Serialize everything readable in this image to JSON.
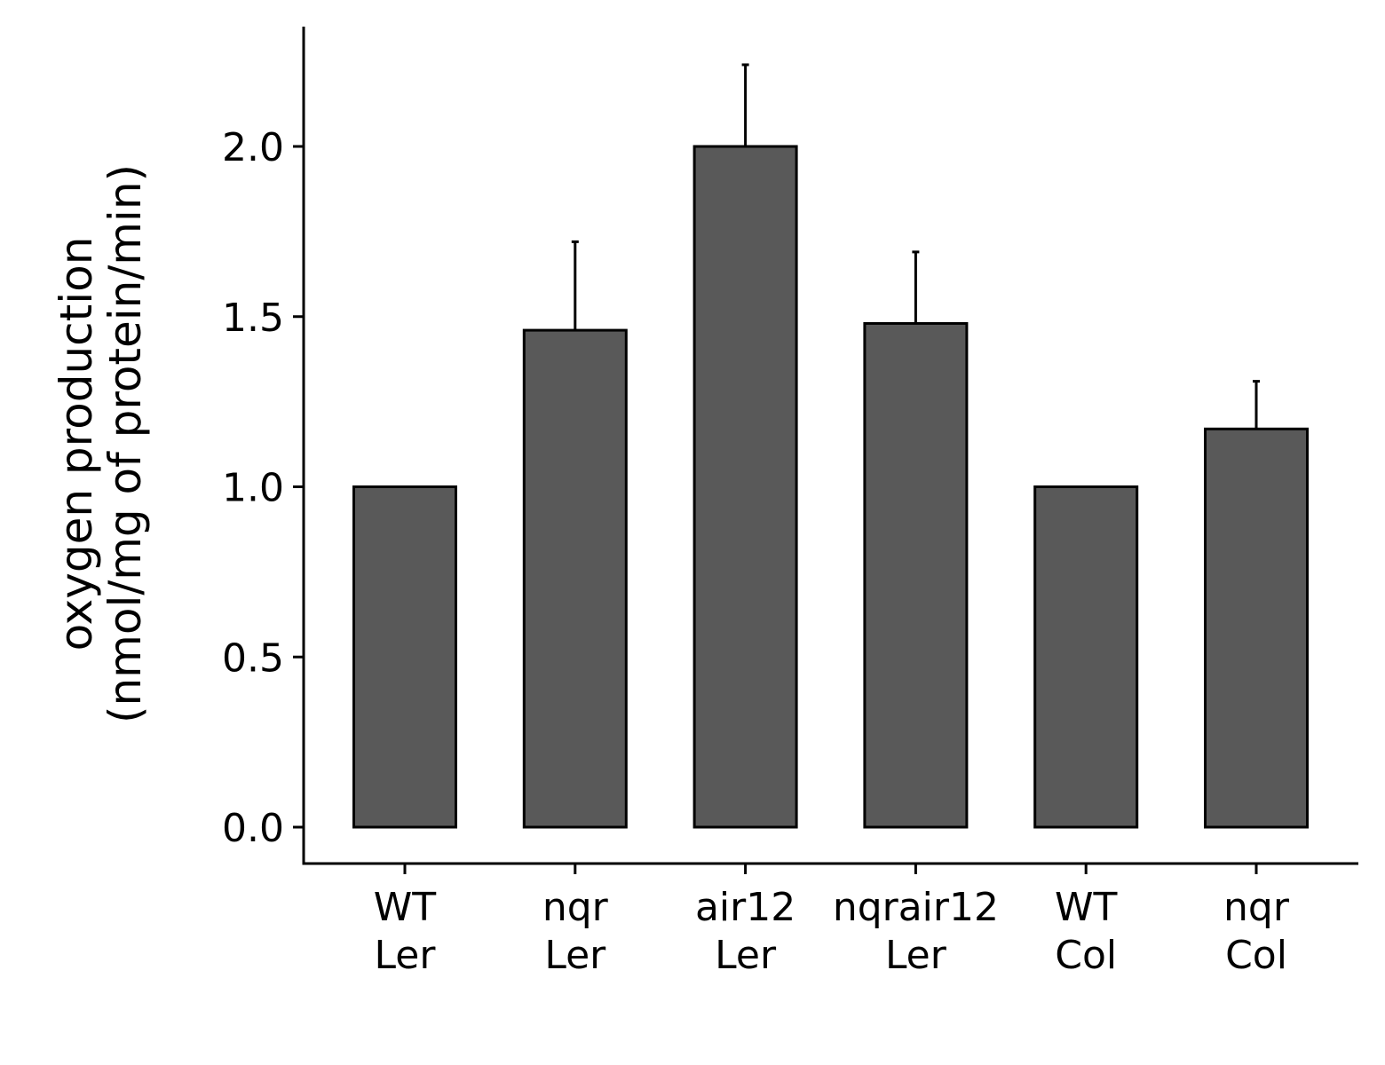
{
  "chart_data": {
    "type": "bar",
    "title": "",
    "xlabel": "",
    "ylabel_lines": [
      "oxygen production",
      "(nmol/mg of protein/min)"
    ],
    "categories": [
      [
        "WT",
        "Ler"
      ],
      [
        "nqr",
        "Ler"
      ],
      [
        "air12",
        "Ler"
      ],
      [
        "nqrair12",
        "Ler"
      ],
      [
        "WT",
        "Col"
      ],
      [
        "nqr",
        "Col"
      ]
    ],
    "values": [
      1.0,
      1.46,
      2.0,
      1.48,
      1.0,
      1.17
    ],
    "error_upper": [
      0.0,
      0.26,
      0.24,
      0.21,
      0.0,
      0.14
    ],
    "ylim": [
      -0.11,
      2.35
    ],
    "yticks": [
      0.0,
      0.5,
      1.0,
      1.5,
      2.0
    ],
    "ytick_labels": [
      "0.0",
      "0.5",
      "1.0",
      "1.5",
      "2.0"
    ],
    "grid": false,
    "legend": "none",
    "bar_color": "#595959",
    "bar_edge_color": "#000000"
  }
}
